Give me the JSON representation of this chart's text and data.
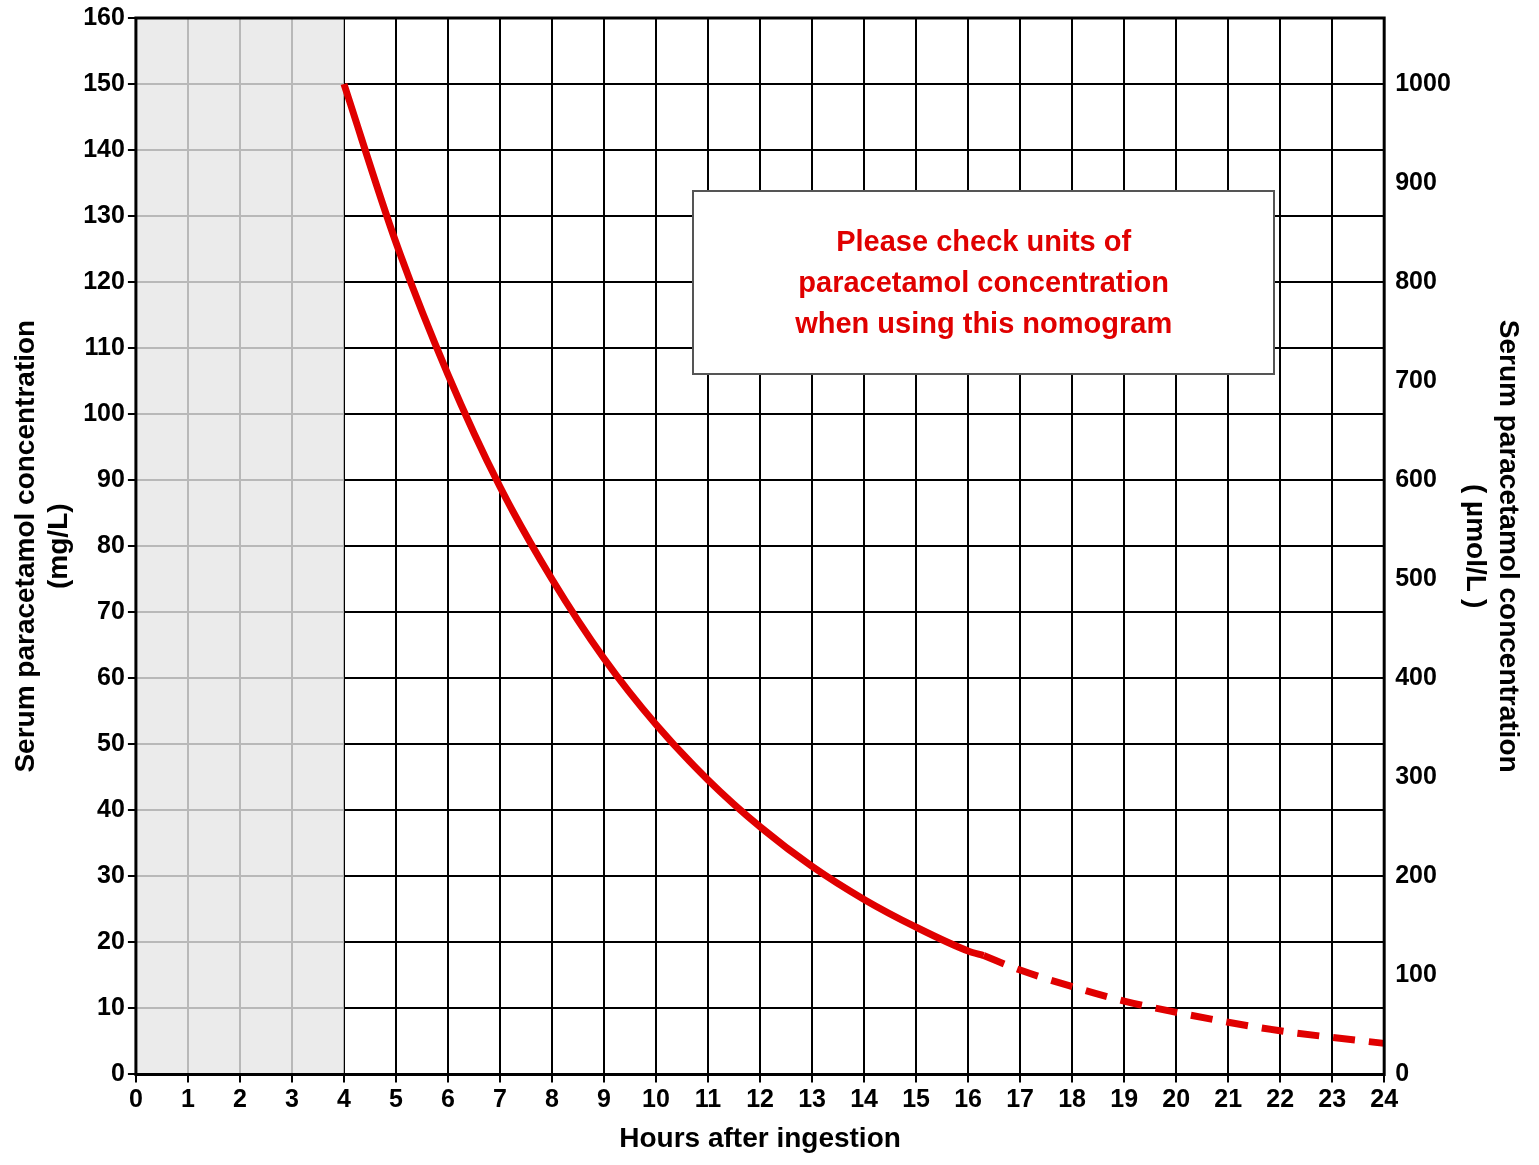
{
  "chart_data": {
    "type": "line",
    "xlabel": "Hours after ingestion",
    "ylabel": "Serum paracetamol concentration\n(mg/L)",
    "y2label": "Serum paracetamol concentration\n( µmol/L )",
    "xlim": [
      0,
      24
    ],
    "xticks": [
      0,
      1,
      2,
      3,
      4,
      5,
      6,
      7,
      8,
      9,
      10,
      11,
      12,
      13,
      14,
      15,
      16,
      17,
      18,
      19,
      20,
      21,
      22,
      23,
      24
    ],
    "ylim": [
      0,
      160
    ],
    "yticks": [
      0,
      10,
      20,
      30,
      40,
      50,
      60,
      70,
      80,
      90,
      100,
      110,
      120,
      130,
      140,
      150,
      160
    ],
    "y2lim": [
      0,
      1066.7
    ],
    "y2ticks": [
      0,
      100,
      200,
      300,
      400,
      500,
      600,
      700,
      800,
      900,
      1000
    ],
    "grid": true,
    "legend": false,
    "marker": "none",
    "series": [
      {
        "color": "#e00000",
        "line_style": "solid",
        "x": [
          4,
          5,
          6,
          7,
          8,
          9,
          10,
          11,
          12,
          13,
          14,
          15,
          16,
          16.3
        ],
        "values": [
          150,
          126,
          106,
          89,
          75,
          63,
          53,
          44.6,
          37.5,
          31.5,
          26.5,
          22.3,
          18.7,
          18
        ]
      },
      {
        "color": "#e00000",
        "line_style": "dashed",
        "x": [
          16.3,
          17,
          18,
          19,
          20,
          21,
          22,
          23,
          24
        ],
        "values": [
          18,
          15.8,
          13.3,
          11.1,
          9.4,
          7.9,
          6.6,
          5.6,
          4.7
        ]
      }
    ],
    "bands": [
      {
        "axis": "x",
        "from": 0,
        "to": 4,
        "color": "#e6e6e6"
      }
    ],
    "annotations": [
      "Please check units of\nparacetamol concentration\nwhen using this nomogram"
    ]
  }
}
